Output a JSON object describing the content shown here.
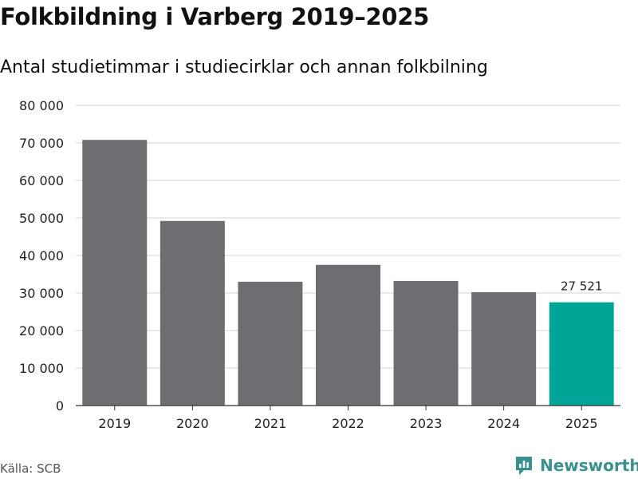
{
  "header": {
    "title": "Folkbildning i Varberg 2019–2025",
    "subtitle": "Antal studietimmar i studiecirklar och annan folkbilning"
  },
  "footer": {
    "source": "Källa: SCB",
    "brand": "Newsworthy"
  },
  "colors": {
    "bar": "#6e6d72",
    "highlight": "#00a597",
    "grid": "#dcdcdc",
    "axis": "#333333",
    "brand": "#3a8f8f"
  },
  "chart_data": {
    "type": "bar",
    "title": "Folkbildning i Varberg 2019–2025",
    "xlabel": "",
    "ylabel": "",
    "categories": [
      "2019",
      "2020",
      "2021",
      "2022",
      "2023",
      "2024",
      "2025"
    ],
    "values": [
      70800,
      49200,
      33000,
      37500,
      33200,
      30200,
      27521
    ],
    "ylim": [
      0,
      80000
    ],
    "yticks": [
      0,
      10000,
      20000,
      30000,
      40000,
      50000,
      60000,
      70000,
      80000
    ],
    "ytick_labels": [
      "0",
      "10 000",
      "20 000",
      "30 000",
      "40 000",
      "50 000",
      "60 000",
      "70 000",
      "80 000"
    ],
    "highlight_index": 6,
    "data_labels": [
      {
        "index": 6,
        "text": "27 521"
      }
    ],
    "grid": true
  }
}
